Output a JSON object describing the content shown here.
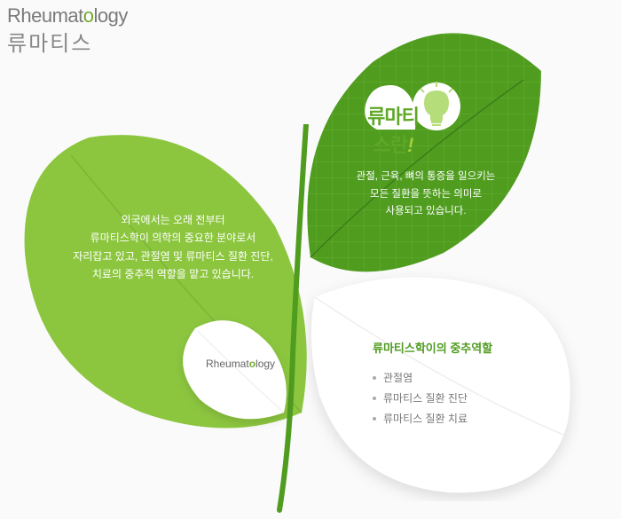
{
  "title": {
    "en_pre": "Rheumat",
    "en_accent_char": "o",
    "en_post": "logy",
    "kr": "류마티스",
    "en_color_normal": "#7a7a7a",
    "en_color_accent": "#6fab2e"
  },
  "leaf_left": {
    "fill": "#8cc63f",
    "text": "외국에서는 오래 전부터\n류마티스학이 의학의 중요한 분야로서\n자리잡고 있고, 관절염 및 류마티스 질환 진단,\n치료의 중추적 역할을 맡고 있습니다.",
    "text_color": "#ffffff"
  },
  "leaf_tr": {
    "fill": "#4f9c1f",
    "grid_color": "#6cb53b",
    "badge_title_main": "류마티스란",
    "badge_title_exc": "!",
    "badge_title_color": "#5fa726",
    "text": "관절, 근육, 뼈의 통증을 일으키는\n모든 질환을 뜻하는 의미로\n사용되고 있습니다.",
    "text_color": "#ffffff",
    "bulb_color": "#b5dd7a"
  },
  "leaf_small": {
    "fill": "#ffffff",
    "shadow": "#d9d9d9",
    "label_pre": "Rheumat",
    "label_accent": "o",
    "label_post": "logy",
    "label_color": "#666666",
    "label_accent_color": "#6fab2e"
  },
  "leaf_br": {
    "fill": "#ffffff",
    "shadow": "#e0e0e0",
    "title": "류마티스학이의 중추역할",
    "title_color": "#4f9c1f",
    "items": [
      "관절염",
      "류마티스 질환 진단",
      "류마티스 질환 치료"
    ],
    "item_color": "#777777"
  },
  "stem": {
    "color": "#4f9c1f"
  },
  "background": "#fafafa"
}
